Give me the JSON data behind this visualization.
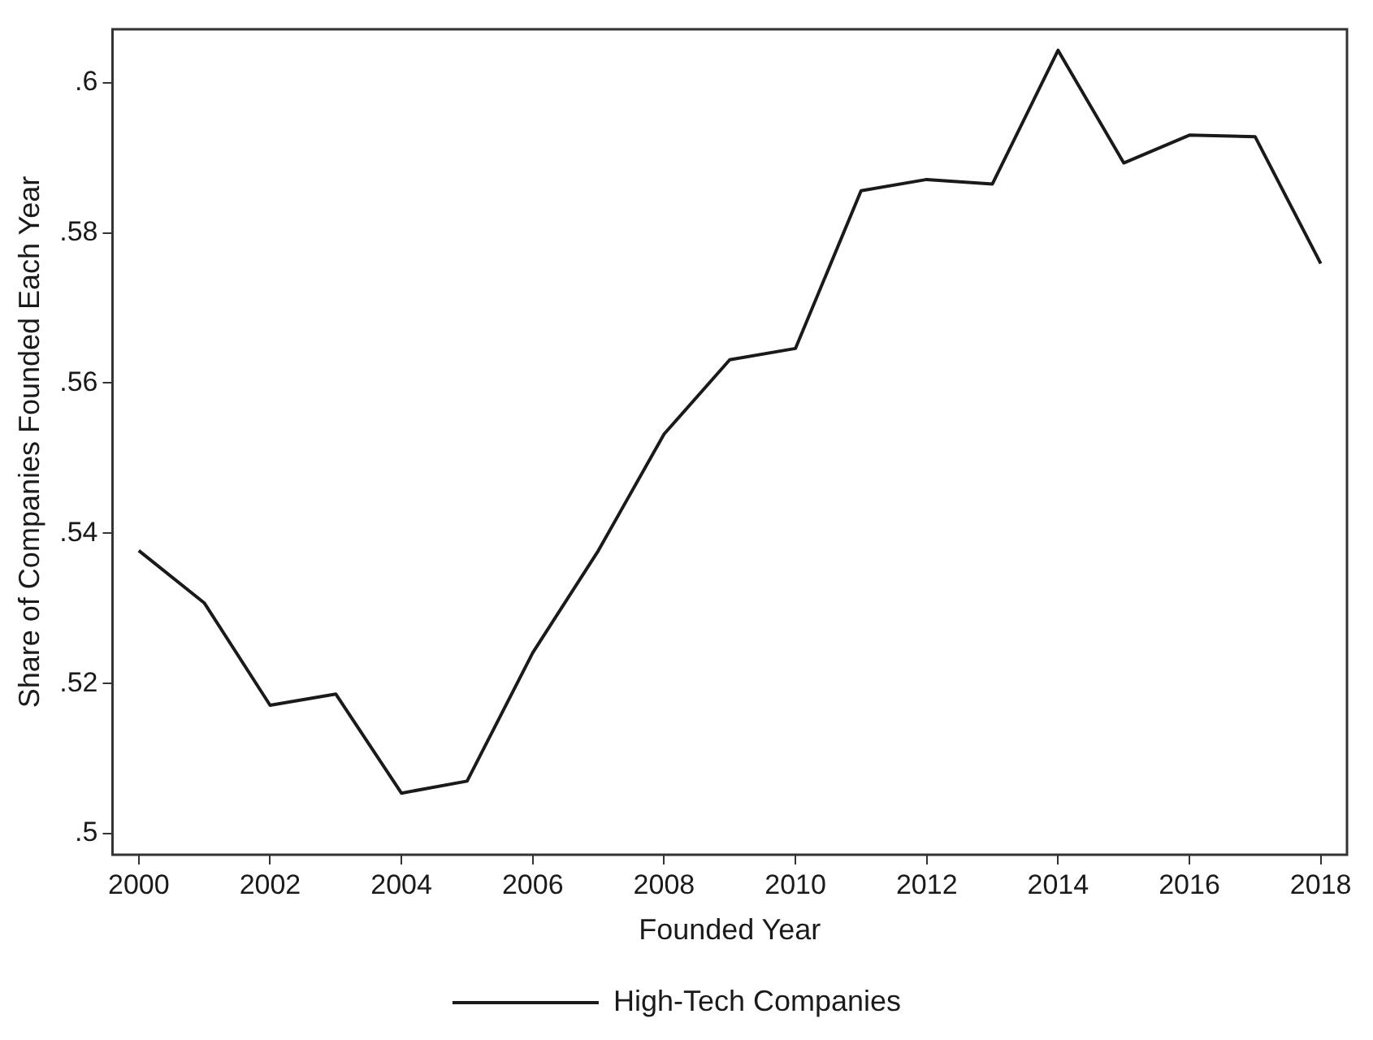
{
  "chart_data": {
    "type": "line",
    "xlabel": "Founded Year",
    "ylabel": "Share of Companies Founded Each Year",
    "x": [
      2000,
      2001,
      2002,
      2003,
      2004,
      2005,
      2006,
      2007,
      2008,
      2009,
      2010,
      2011,
      2012,
      2013,
      2014,
      2015,
      2016,
      2017,
      2018
    ],
    "series": [
      {
        "name": "High-Tech Companies",
        "color": "#1a1a1a",
        "values": [
          0.5377,
          0.5307,
          0.5171,
          0.5186,
          0.5054,
          0.507,
          0.5241,
          0.5377,
          0.5532,
          0.5631,
          0.5646,
          0.5856,
          0.5871,
          0.5865,
          0.6043,
          0.5893,
          0.593,
          0.5928,
          0.5759
        ]
      }
    ],
    "xlim": [
      1999.6,
      2018.4
    ],
    "xticks": [
      2000,
      2002,
      2004,
      2006,
      2008,
      2010,
      2012,
      2014,
      2016,
      2018
    ],
    "ylim": [
      0.4972,
      0.6071
    ],
    "yticks": [
      {
        "value": 0.5,
        "label": ".5"
      },
      {
        "value": 0.52,
        "label": ".52"
      },
      {
        "value": 0.54,
        "label": ".54"
      },
      {
        "value": 0.56,
        "label": ".56"
      },
      {
        "value": 0.58,
        "label": ".58"
      },
      {
        "value": 0.6,
        "label": ".6"
      }
    ],
    "grid": false,
    "legend": "bottom",
    "marker": "none",
    "line_style": "solid"
  }
}
